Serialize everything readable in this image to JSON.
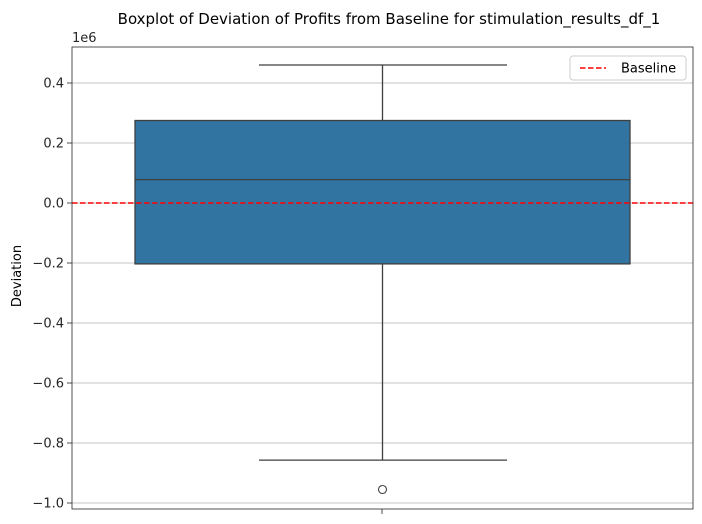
{
  "chart_data": {
    "type": "box",
    "title": "Boxplot of Deviation of Profits from Baseline for stimulation_results_df_1",
    "xlabel": "",
    "ylabel": "Deviation",
    "offset_label": "1e6",
    "ylim": [
      -1.02,
      0.52
    ],
    "yticks": [
      0.4,
      0.2,
      0.0,
      -0.2,
      -0.4,
      -0.6,
      -0.8,
      -1.0
    ],
    "ytick_labels": [
      "0.4",
      "0.2",
      "0.0",
      "−0.2",
      "−0.4",
      "−0.6",
      "−0.8",
      "−1.0"
    ],
    "grid": "y",
    "box": {
      "whisker_high": 0.46,
      "q3": 0.275,
      "median": 0.078,
      "q1": -0.203,
      "whisker_low": -0.857,
      "outliers": [
        -0.955
      ],
      "color": "#3274a1",
      "edge_color": "#3f3f3f"
    },
    "baseline": {
      "value": 0.0,
      "color": "#ff0000",
      "label": "Baseline"
    },
    "legend": {
      "position": "top-right",
      "entries": [
        "Baseline"
      ]
    }
  }
}
